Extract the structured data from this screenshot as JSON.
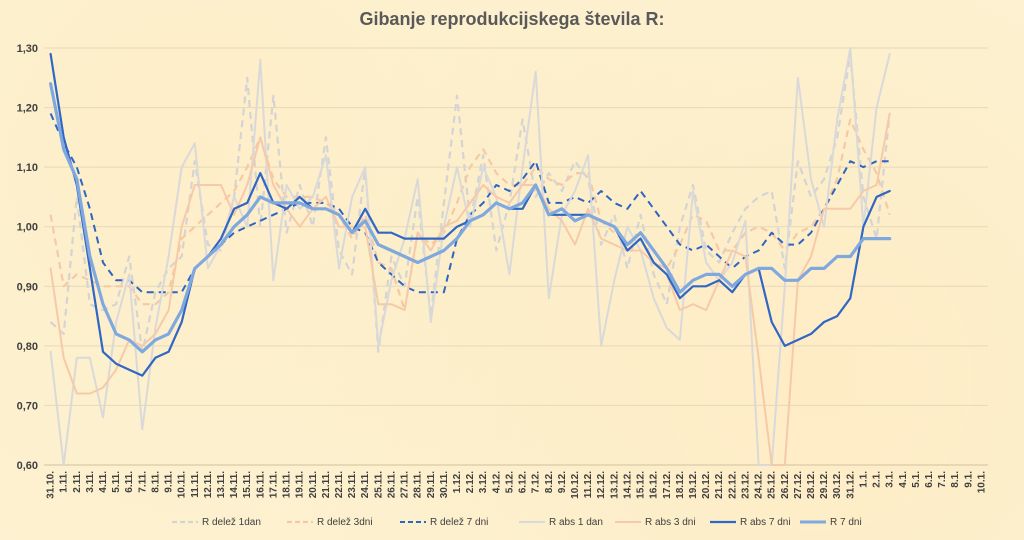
{
  "chart_data": {
    "type": "line",
    "title": "Gibanje reprodukcijskega števila R:",
    "ylim": [
      0.6,
      1.3
    ],
    "yticks": [
      "0,60",
      "0,70",
      "0,80",
      "0,90",
      "1,00",
      "1,10",
      "1,20",
      "1,30"
    ],
    "ytick_values": [
      0.6,
      0.7,
      0.8,
      0.9,
      1.0,
      1.1,
      1.2,
      1.3
    ],
    "grid": "horizontal",
    "legend_position": "bottom",
    "xtick_labels": [
      "31.10.",
      "1.11.",
      "2.11.",
      "3.11.",
      "4.11.",
      "5.11.",
      "6.11.",
      "7.11.",
      "8.11.",
      "9.11.",
      "10.11.",
      "11.11.",
      "12.11.",
      "13.11.",
      "14.11.",
      "15.11.",
      "16.11.",
      "17.11.",
      "18.11.",
      "19.11.",
      "20.11.",
      "21.11.",
      "22.11.",
      "23.11.",
      "24.11.",
      "25.11.",
      "26.11.",
      "27.11.",
      "28.11.",
      "29.11.",
      "30.11.",
      "1.12.",
      "2.12.",
      "3.12.",
      "4.12.",
      "5.12.",
      "6.12.",
      "7.12.",
      "8.12.",
      "9.12.",
      "10.12.",
      "11.12.",
      "12.12.",
      "13.12.",
      "14.12.",
      "15.12.",
      "16.12.",
      "17.12.",
      "18.12.",
      "19.12.",
      "20.12.",
      "21.12.",
      "22.12.",
      "23.12.",
      "24.12.",
      "25.12.",
      "26.12.",
      "27.12.",
      "28.12.",
      "29.12.",
      "30.12.",
      "31.12.",
      "1.1.",
      "2.1.",
      "3.1.",
      "4.1.",
      "5.1.",
      "6.1.",
      "7.1.",
      "8.1.",
      "9.1.",
      "10.1."
    ],
    "series": [
      {
        "name": "R delež 1dan",
        "color": "#d4d4d4",
        "dash": "dashed",
        "width": 2.2,
        "values": [
          0.84,
          0.82,
          1.05,
          0.87,
          0.86,
          0.87,
          0.95,
          0.79,
          0.89,
          0.93,
          0.95,
          1.11,
          0.97,
          0.96,
          1.05,
          1.25,
          1.0,
          1.22,
          0.99,
          1.07,
          1.0,
          1.15,
          0.96,
          0.92,
          1.1,
          0.79,
          0.95,
          0.9,
          1.05,
          0.85,
          1.04,
          1.22,
          1.01,
          1.12,
          0.96,
          1.04,
          1.18,
          1.05,
          1.09,
          1.06,
          1.11,
          1.08,
          0.97,
          1.02,
          0.93,
          1.02,
          0.92,
          0.87,
          1.0,
          1.07,
          0.96,
          0.94,
          0.99,
          1.03,
          1.05,
          1.06,
          0.93,
          1.11,
          1.05,
          1.08,
          1.15,
          1.29,
          1.05,
          0.98,
          1.19,
          null,
          null,
          null,
          null,
          null,
          null,
          null
        ]
      },
      {
        "name": "R delež 3dni",
        "color": "#f6c9a6",
        "dash": "dashed",
        "width": 2.2,
        "values": [
          1.02,
          0.9,
          0.92,
          0.91,
          0.9,
          0.9,
          0.9,
          0.87,
          0.87,
          0.89,
          0.98,
          1.0,
          1.02,
          1.04,
          1.06,
          1.1,
          1.15,
          1.08,
          1.05,
          1.05,
          1.05,
          1.04,
          1.02,
          0.98,
          1.02,
          0.94,
          0.93,
          0.86,
          0.99,
          0.97,
          0.99,
          1.04,
          1.1,
          1.13,
          1.09,
          1.07,
          1.07,
          1.1,
          1.08,
          1.07,
          1.09,
          1.09,
          1.01,
          0.99,
          0.97,
          0.98,
          0.94,
          0.93,
          0.97,
          1.02,
          1.01,
          0.96,
          0.96,
          0.99,
          1.0,
          0.99,
          0.96,
          0.99,
          1.0,
          1.03,
          1.08,
          1.18,
          1.13,
          1.09,
          1.02,
          null,
          null,
          null,
          null,
          null,
          null,
          null
        ]
      },
      {
        "name": "R delež 7 dni",
        "color": "#2f64c0",
        "dash": "dashed",
        "width": 2.0,
        "values": [
          1.19,
          1.14,
          1.1,
          1.03,
          0.94,
          0.91,
          0.91,
          0.89,
          0.89,
          0.89,
          0.89,
          0.93,
          0.95,
          0.97,
          0.99,
          1.0,
          1.01,
          1.02,
          1.03,
          1.04,
          1.04,
          1.04,
          1.03,
          1.0,
          0.99,
          0.94,
          0.92,
          0.9,
          0.89,
          0.89,
          0.89,
          0.98,
          1.02,
          1.04,
          1.07,
          1.06,
          1.08,
          1.11,
          1.04,
          1.04,
          1.05,
          1.04,
          1.06,
          1.04,
          1.03,
          1.06,
          1.03,
          1.0,
          0.97,
          0.96,
          0.97,
          0.95,
          0.93,
          0.95,
          0.96,
          0.99,
          0.97,
          0.97,
          0.99,
          1.03,
          1.07,
          1.11,
          1.1,
          1.11,
          1.11,
          null,
          null,
          null,
          null,
          null,
          null,
          null
        ]
      },
      {
        "name": "R abs 1 dan",
        "color": "#d9d9d9",
        "dash": "solid",
        "width": 2.0,
        "values": [
          0.79,
          0.6,
          0.78,
          0.78,
          0.68,
          0.84,
          0.92,
          0.66,
          0.83,
          0.95,
          1.1,
          1.14,
          0.93,
          0.97,
          1.05,
          1.0,
          1.28,
          0.91,
          1.07,
          1.03,
          1.05,
          1.12,
          0.93,
          1.05,
          1.1,
          0.8,
          0.91,
          0.98,
          1.08,
          0.84,
          1.0,
          1.1,
          1.0,
          1.1,
          1.05,
          0.92,
          1.1,
          1.26,
          0.88,
          1.02,
          1.06,
          1.12,
          0.8,
          0.91,
          1.0,
          0.96,
          0.88,
          0.83,
          0.81,
          1.06,
          0.94,
          0.91,
          0.94,
          1.01,
          0.6,
          0.6,
          0.9,
          1.25,
          1.08,
          1.0,
          1.18,
          1.3,
          1.0,
          1.2,
          1.29,
          null,
          null,
          null,
          null,
          null,
          null,
          null
        ]
      },
      {
        "name": "R abs 3 dni",
        "color": "#f6caa8",
        "dash": "solid",
        "width": 2.0,
        "values": [
          0.93,
          0.78,
          0.72,
          0.72,
          0.73,
          0.76,
          0.81,
          0.8,
          0.82,
          0.86,
          1.0,
          1.07,
          1.07,
          1.07,
          1.02,
          1.07,
          1.15,
          1.07,
          1.03,
          1.0,
          1.03,
          1.05,
          1.0,
          1.0,
          1.0,
          0.87,
          0.87,
          0.86,
          0.99,
          0.96,
          1.0,
          1.01,
          1.04,
          1.07,
          1.05,
          1.04,
          1.07,
          1.07,
          1.03,
          1.01,
          0.97,
          1.03,
          0.98,
          0.97,
          0.96,
          0.96,
          0.94,
          0.92,
          0.86,
          0.87,
          0.86,
          0.91,
          0.96,
          0.95,
          0.78,
          0.6,
          0.6,
          0.91,
          0.95,
          1.03,
          1.03,
          1.03,
          1.06,
          1.07,
          1.19,
          null,
          null,
          null,
          null,
          null,
          null,
          null
        ]
      },
      {
        "name": "R abs 7 dni",
        "color": "#3066c4",
        "dash": "solid",
        "width": 2.2,
        "values": [
          1.29,
          1.15,
          1.07,
          0.93,
          0.79,
          0.77,
          0.76,
          0.75,
          0.78,
          0.79,
          0.84,
          0.93,
          0.95,
          0.98,
          1.03,
          1.04,
          1.09,
          1.04,
          1.03,
          1.05,
          1.03,
          1.03,
          1.02,
          0.99,
          1.03,
          0.99,
          0.99,
          0.98,
          0.98,
          0.98,
          0.98,
          1.0,
          1.01,
          1.02,
          1.04,
          1.03,
          1.03,
          1.07,
          1.02,
          1.02,
          1.02,
          1.02,
          1.01,
          1.0,
          0.96,
          0.98,
          0.94,
          0.92,
          0.88,
          0.9,
          0.9,
          0.91,
          0.89,
          0.92,
          0.93,
          0.84,
          0.8,
          0.81,
          0.82,
          0.84,
          0.85,
          0.88,
          1.0,
          1.05,
          1.06,
          null,
          null,
          null,
          null,
          null,
          null,
          null
        ]
      },
      {
        "name": "R 7 dni",
        "color": "#7fa9de",
        "dash": "solid",
        "width": 3.2,
        "values": [
          1.24,
          1.13,
          1.08,
          0.95,
          0.87,
          0.82,
          0.81,
          0.79,
          0.81,
          0.82,
          0.86,
          0.93,
          0.95,
          0.97,
          1.0,
          1.02,
          1.05,
          1.04,
          1.04,
          1.04,
          1.03,
          1.03,
          1.02,
          0.99,
          1.01,
          0.97,
          0.96,
          0.95,
          0.94,
          0.95,
          0.96,
          0.98,
          1.01,
          1.02,
          1.04,
          1.03,
          1.04,
          1.07,
          1.02,
          1.03,
          1.01,
          1.02,
          1.01,
          1.0,
          0.97,
          0.99,
          0.96,
          0.93,
          0.89,
          0.91,
          0.92,
          0.92,
          0.9,
          0.92,
          0.93,
          0.93,
          0.91,
          0.91,
          0.93,
          0.93,
          0.95,
          0.95,
          0.98,
          0.98,
          0.98,
          null,
          null,
          null,
          null,
          null,
          null,
          null
        ]
      }
    ]
  }
}
